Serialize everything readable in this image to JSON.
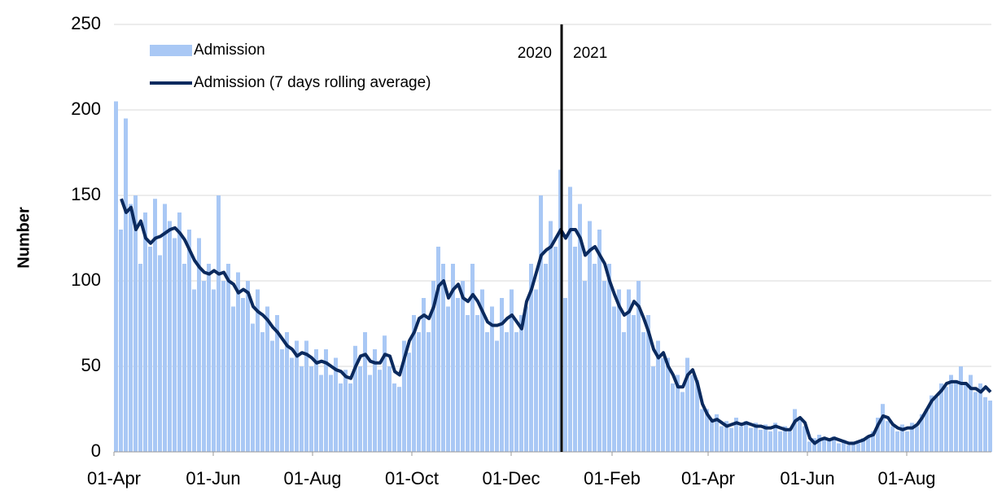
{
  "chart_data": {
    "type": "bar-line",
    "y_label": "Number",
    "x": [
      0,
      3,
      6,
      9,
      12,
      15,
      18,
      21,
      24,
      27,
      30,
      33,
      36,
      39,
      42,
      45,
      48,
      51,
      54,
      57,
      60,
      63,
      66,
      69,
      72,
      75,
      78,
      81,
      84,
      87,
      90,
      93,
      96,
      99,
      102,
      105,
      108,
      111,
      114,
      117,
      120,
      123,
      126,
      129,
      132,
      135,
      138,
      141,
      144,
      147,
      150,
      153,
      156,
      159,
      162,
      165,
      168,
      171,
      174,
      177,
      180,
      183,
      186,
      189,
      192,
      195,
      198,
      201,
      204,
      207,
      210,
      213,
      216,
      219,
      222,
      225,
      228,
      231,
      234,
      237,
      240,
      243,
      246,
      249,
      252,
      255,
      258,
      261,
      264,
      267,
      270,
      273,
      276,
      279,
      282,
      285,
      288,
      291,
      294,
      297,
      300,
      303,
      306,
      309,
      312,
      315,
      318,
      321,
      324,
      327,
      330,
      333,
      336,
      339,
      342,
      345,
      348,
      351,
      354,
      357,
      360,
      363,
      366,
      369,
      372,
      375,
      378,
      381,
      384,
      387,
      390,
      393,
      396,
      399,
      402,
      405,
      408,
      411,
      414,
      417,
      420,
      423,
      426,
      429,
      432,
      435,
      438,
      441,
      444,
      447,
      450,
      453,
      456,
      459,
      462,
      465,
      468,
      471,
      474,
      477,
      480,
      483,
      486,
      489,
      492,
      495,
      498,
      501,
      504,
      507,
      510,
      513,
      516,
      519,
      522,
      525,
      528,
      531,
      534,
      537
    ],
    "series": [
      {
        "name": "Admission",
        "color": "#a9c8f5",
        "kind": "bar",
        "values": [
          205,
          130,
          195,
          145,
          150,
          110,
          140,
          120,
          148,
          115,
          145,
          135,
          125,
          140,
          110,
          130,
          95,
          125,
          100,
          110,
          95,
          150,
          100,
          110,
          85,
          105,
          90,
          100,
          75,
          95,
          70,
          85,
          65,
          80,
          60,
          70,
          55,
          65,
          50,
          65,
          50,
          60,
          45,
          60,
          45,
          55,
          40,
          48,
          40,
          62,
          50,
          70,
          45,
          60,
          48,
          68,
          50,
          40,
          38,
          65,
          58,
          80,
          70,
          90,
          70,
          100,
          120,
          110,
          85,
          110,
          90,
          100,
          80,
          110,
          80,
          95,
          70,
          85,
          65,
          90,
          70,
          95,
          70,
          80,
          85,
          110,
          95,
          150,
          110,
          135,
          120,
          165,
          90,
          155,
          120,
          145,
          100,
          135,
          110,
          130,
          100,
          110,
          85,
          95,
          70,
          95,
          80,
          100,
          70,
          80,
          50,
          65,
          55,
          55,
          40,
          45,
          35,
          55,
          45,
          42,
          25,
          25,
          18,
          22,
          15,
          18,
          14,
          20,
          15,
          18,
          14,
          17,
          13,
          16,
          12,
          17,
          12,
          15,
          12,
          25,
          20,
          15,
          6,
          8,
          10,
          7,
          8,
          9,
          5,
          7,
          4,
          6,
          5,
          8,
          9,
          12,
          20,
          28,
          18,
          15,
          12,
          16,
          12,
          17,
          15,
          22,
          25,
          33,
          32,
          40,
          38,
          45,
          42,
          50,
          40,
          45,
          35,
          40,
          32,
          30
        ]
      },
      {
        "name": "Admission (7 days rolling average)",
        "color": "#0b2a5e",
        "kind": "line",
        "values": [
          null,
          148,
          140,
          143,
          130,
          135,
          125,
          122,
          125,
          126,
          128,
          130,
          131,
          128,
          124,
          118,
          112,
          108,
          105,
          104,
          106,
          104,
          105,
          100,
          98,
          93,
          95,
          93,
          85,
          82,
          80,
          77,
          73,
          70,
          66,
          62,
          60,
          56,
          58,
          57,
          55,
          52,
          53,
          52,
          50,
          48,
          47,
          44,
          43,
          50,
          56,
          57,
          53,
          52,
          52,
          57,
          56,
          47,
          45,
          55,
          65,
          70,
          78,
          80,
          78,
          85,
          97,
          100,
          90,
          95,
          98,
          90,
          88,
          92,
          88,
          82,
          76,
          74,
          74,
          75,
          78,
          80,
          76,
          72,
          88,
          95,
          105,
          115,
          118,
          120,
          125,
          130,
          125,
          130,
          130,
          125,
          115,
          118,
          120,
          115,
          110,
          100,
          92,
          85,
          80,
          82,
          88,
          85,
          78,
          70,
          60,
          55,
          58,
          50,
          45,
          38,
          38,
          45,
          48,
          40,
          28,
          22,
          18,
          19,
          17,
          15,
          16,
          17,
          16,
          17,
          16,
          15,
          15,
          14,
          14,
          15,
          14,
          13,
          13,
          18,
          20,
          17,
          8,
          5,
          7,
          8,
          7,
          8,
          7,
          6,
          5,
          5,
          6,
          7,
          9,
          10,
          16,
          21,
          20,
          16,
          14,
          13,
          14,
          14,
          16,
          20,
          25,
          30,
          33,
          36,
          40,
          41,
          41,
          40,
          40,
          37,
          37,
          35,
          38,
          35
        ]
      }
    ],
    "xlim": [
      0,
      539
    ],
    "xticks": [
      {
        "value": 0,
        "label": "01-Apr"
      },
      {
        "value": 61,
        "label": "01-Jun"
      },
      {
        "value": 122,
        "label": "01-Aug"
      },
      {
        "value": 183,
        "label": "01-Oct"
      },
      {
        "value": 244,
        "label": "01-Dec"
      },
      {
        "value": 306,
        "label": "01-Feb"
      },
      {
        "value": 365,
        "label": "01-Apr"
      },
      {
        "value": 426,
        "label": "01-Jun"
      },
      {
        "value": 487,
        "label": "01-Aug"
      }
    ],
    "ylim": [
      0,
      250
    ],
    "yticks": [
      0,
      50,
      100,
      150,
      200,
      250
    ],
    "grid": true,
    "year_divider": {
      "x": 275,
      "left_label": "2020",
      "right_label": "2021"
    },
    "legend": "top-left"
  }
}
